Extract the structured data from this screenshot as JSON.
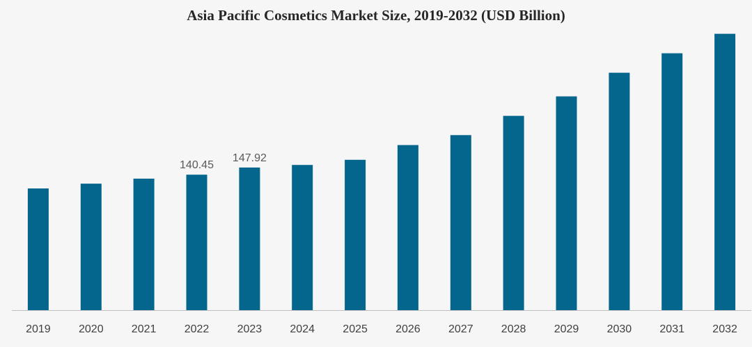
{
  "chart_data": {
    "type": "bar",
    "title": "Asia Pacific Cosmetics Market Size, 2019-2032 (USD Billion)",
    "xlabel": "",
    "ylabel": "",
    "categories": [
      "2019",
      "2020",
      "2021",
      "2022",
      "2023",
      "2024",
      "2025",
      "2026",
      "2027",
      "2028",
      "2029",
      "2030",
      "2031",
      "2032"
    ],
    "values": [
      126.2,
      131.2,
      136.4,
      140.45,
      147.92,
      150.6,
      155.9,
      171.2,
      181.5,
      201.5,
      221.7,
      246.2,
      266.4,
      286.6
    ],
    "data_labels": [
      "",
      "",
      "",
      "140.45",
      "147.92",
      "",
      "",
      "",
      "",
      "",
      "",
      "",
      "",
      ""
    ],
    "ylim": [
      0,
      300
    ],
    "grid": false,
    "legend": "none",
    "bar_color": "#04668c",
    "axis_color": "#bfbfbf"
  }
}
